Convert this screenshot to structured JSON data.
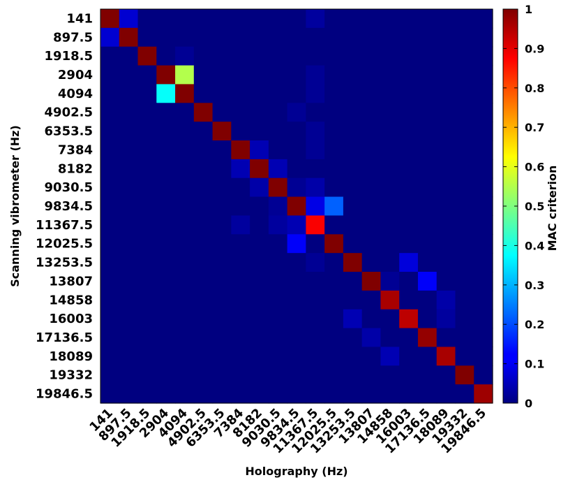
{
  "chart_data": {
    "type": "heatmap",
    "title": "",
    "xlabel": "Holography (Hz)",
    "ylabel": "Scanning vibrometer (Hz)",
    "x_categories": [
      "141",
      "897.5",
      "1918.5",
      "2904",
      "4094",
      "4902.5",
      "6353.5",
      "7384",
      "8182",
      "9030.5",
      "9834.5",
      "11367.5",
      "12025.5",
      "13253.5",
      "13807",
      "14858",
      "16003",
      "17136.5",
      "18089",
      "19332",
      "19846.5"
    ],
    "y_categories": [
      "141",
      "897.5",
      "1918.5",
      "2904",
      "4094",
      "4902.5",
      "6353.5",
      "7384",
      "8182",
      "9030.5",
      "9834.5",
      "11367.5",
      "12025.5",
      "13253.5",
      "13807",
      "14858",
      "16003",
      "17136.5",
      "18089",
      "19332",
      "19846.5"
    ],
    "colorbar": {
      "label": "MAC criterion",
      "range": [
        0,
        1
      ],
      "ticks": [
        "0",
        "0.1",
        "0.2",
        "0.3",
        "0.4",
        "0.5",
        "0.6",
        "0.7",
        "0.8",
        "0.9",
        "1"
      ],
      "colormap": "jet"
    },
    "grid": false,
    "values": [
      [
        1.0,
        0.08,
        0,
        0,
        0,
        0,
        0,
        0,
        0,
        0,
        0,
        0.03,
        0,
        0,
        0,
        0,
        0,
        0,
        0,
        0,
        0
      ],
      [
        0.08,
        1.0,
        0,
        0,
        0,
        0,
        0,
        0,
        0,
        0,
        0,
        0,
        0,
        0,
        0,
        0,
        0,
        0,
        0,
        0,
        0
      ],
      [
        0,
        0,
        1.0,
        0,
        0.02,
        0,
        0,
        0,
        0,
        0,
        0,
        0,
        0,
        0,
        0,
        0,
        0,
        0,
        0,
        0,
        0
      ],
      [
        0,
        0,
        0,
        1.0,
        0.55,
        0,
        0,
        0,
        0,
        0,
        0,
        0.02,
        0,
        0,
        0,
        0,
        0,
        0,
        0,
        0,
        0
      ],
      [
        0,
        0,
        0,
        0.38,
        1.0,
        0,
        0,
        0,
        0,
        0,
        0,
        0.02,
        0,
        0,
        0,
        0,
        0,
        0,
        0,
        0,
        0
      ],
      [
        0,
        0,
        0,
        0,
        0,
        1.0,
        0,
        0,
        0,
        0,
        0.02,
        0,
        0,
        0,
        0,
        0,
        0,
        0,
        0,
        0,
        0
      ],
      [
        0,
        0,
        0,
        0,
        0,
        0,
        1.0,
        0,
        0,
        0,
        0,
        0.02,
        0,
        0,
        0,
        0,
        0,
        0,
        0,
        0,
        0
      ],
      [
        0,
        0,
        0,
        0,
        0,
        0,
        0,
        1.0,
        0.05,
        0,
        0,
        0.02,
        0,
        0,
        0,
        0,
        0,
        0,
        0,
        0,
        0
      ],
      [
        0,
        0,
        0,
        0,
        0,
        0,
        0,
        0.05,
        1.0,
        0.05,
        0,
        0,
        0,
        0,
        0,
        0,
        0,
        0,
        0,
        0,
        0
      ],
      [
        0,
        0,
        0,
        0,
        0,
        0,
        0,
        0,
        0.04,
        1.0,
        0.02,
        0.04,
        0,
        0,
        0,
        0,
        0,
        0,
        0,
        0,
        0
      ],
      [
        0,
        0,
        0,
        0,
        0,
        0,
        0,
        0,
        0,
        0.02,
        1.0,
        0.1,
        0.22,
        0,
        0,
        0,
        0,
        0,
        0,
        0,
        0
      ],
      [
        0,
        0,
        0,
        0,
        0,
        0,
        0,
        0.03,
        0,
        0.03,
        0.05,
        0.88,
        0,
        0,
        0,
        0,
        0,
        0,
        0,
        0,
        0
      ],
      [
        0,
        0,
        0,
        0,
        0,
        0,
        0,
        0,
        0,
        0,
        0.12,
        0,
        1.0,
        0,
        0,
        0,
        0,
        0,
        0,
        0,
        0
      ],
      [
        0,
        0,
        0,
        0,
        0,
        0,
        0,
        0,
        0,
        0,
        0,
        0.02,
        0,
        1.0,
        0,
        0,
        0.09,
        0,
        0,
        0,
        0
      ],
      [
        0,
        0,
        0,
        0,
        0,
        0,
        0,
        0,
        0,
        0,
        0,
        0,
        0,
        0,
        1.0,
        0.02,
        0,
        0.12,
        0,
        0,
        0
      ],
      [
        0,
        0,
        0,
        0,
        0,
        0,
        0,
        0,
        0,
        0,
        0,
        0,
        0,
        0,
        0,
        0.96,
        0,
        0,
        0.04,
        0,
        0
      ],
      [
        0,
        0,
        0,
        0,
        0,
        0,
        0,
        0,
        0,
        0,
        0,
        0,
        0,
        0.05,
        0,
        0,
        0.94,
        0,
        0.03,
        0,
        0
      ],
      [
        0,
        0,
        0,
        0,
        0,
        0,
        0,
        0,
        0,
        0,
        0,
        0,
        0,
        0,
        0.04,
        0,
        0,
        0.98,
        0,
        0,
        0
      ],
      [
        0,
        0,
        0,
        0,
        0,
        0,
        0,
        0,
        0,
        0,
        0,
        0,
        0,
        0,
        0,
        0.05,
        0,
        0,
        0.96,
        0,
        0
      ],
      [
        0,
        0,
        0,
        0,
        0,
        0,
        0,
        0,
        0,
        0,
        0,
        0,
        0,
        0,
        0,
        0,
        0,
        0,
        0,
        1.0,
        0
      ],
      [
        0,
        0,
        0,
        0,
        0,
        0,
        0,
        0,
        0,
        0,
        0,
        0,
        0,
        0,
        0,
        0,
        0,
        0,
        0,
        0,
        0.97
      ]
    ]
  }
}
